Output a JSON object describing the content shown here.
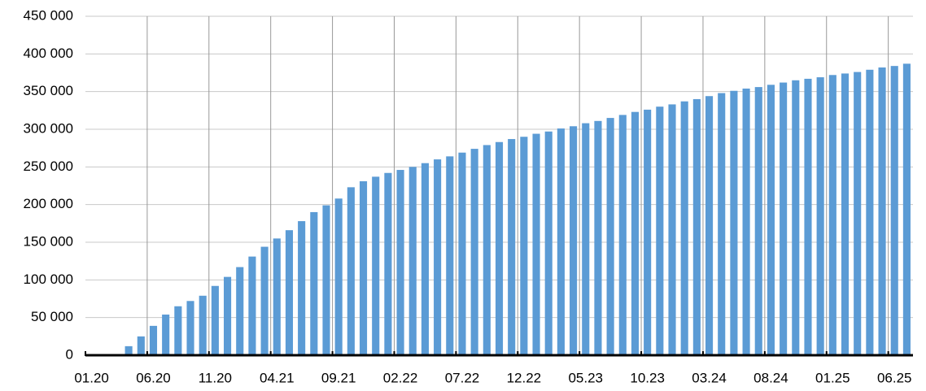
{
  "chart_data": {
    "type": "bar",
    "categories": [
      "01.20",
      null,
      null,
      null,
      null,
      "06.20",
      null,
      null,
      null,
      null,
      "11.20",
      null,
      null,
      null,
      null,
      "04.21",
      null,
      null,
      null,
      null,
      "09.21",
      null,
      null,
      null,
      null,
      "02.22",
      null,
      null,
      null,
      null,
      "07.22",
      null,
      null,
      null,
      null,
      "12.22",
      null,
      null,
      null,
      null,
      "05.23",
      null,
      null,
      null,
      null,
      "10.23",
      null,
      null,
      null,
      null,
      "03.24",
      null,
      null,
      null,
      null,
      "08.24",
      null,
      null,
      null,
      null,
      "01.25",
      null,
      null,
      null,
      null,
      "06.25",
      null
    ],
    "values": [
      0,
      0,
      0,
      12000,
      25000,
      39000,
      54000,
      65000,
      72000,
      79000,
      92000,
      104000,
      117000,
      131000,
      144000,
      155000,
      166000,
      178000,
      190000,
      199000,
      208000,
      223000,
      231000,
      237000,
      242000,
      246000,
      250000,
      255000,
      260000,
      264000,
      269000,
      274000,
      279000,
      283000,
      287000,
      290000,
      294000,
      297000,
      301000,
      304000,
      308000,
      311000,
      315000,
      319000,
      323000,
      326000,
      330000,
      333000,
      337000,
      340000,
      344000,
      348000,
      351000,
      354000,
      356000,
      359000,
      362000,
      365000,
      367000,
      369000,
      372000,
      374000,
      376000,
      379000,
      382000,
      384000,
      387000
    ],
    "color": "#5b9bd5",
    "ylim": [
      0,
      450000
    ],
    "yticks": [
      0,
      {
        "value": 50000,
        "label": "50 000"
      },
      {
        "value": 100000,
        "label": "100 000"
      },
      {
        "value": 150000,
        "label": "150 000"
      },
      {
        "value": 200000,
        "label": "200 000"
      },
      {
        "value": 250000,
        "label": "250 000"
      },
      {
        "value": 300000,
        "label": "300 000"
      },
      {
        "value": 350000,
        "label": "350 000"
      },
      {
        "value": 400000,
        "label": "400 000"
      },
      {
        "value": 450000,
        "label": "450 000"
      }
    ],
    "grid": true
  }
}
